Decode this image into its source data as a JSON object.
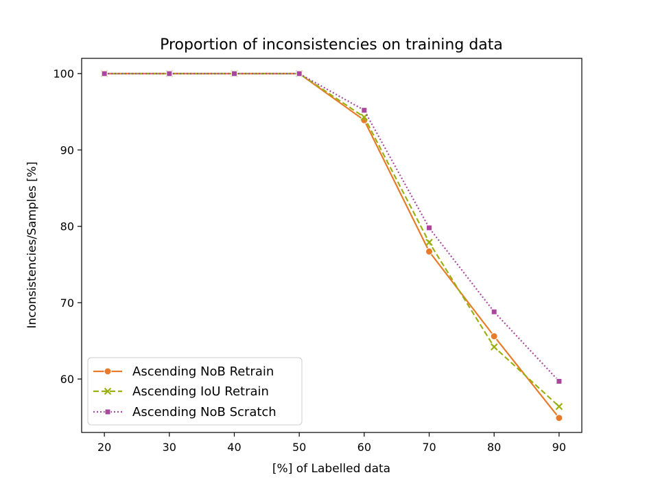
{
  "chart_data": {
    "type": "line",
    "title": "Proportion of inconsistencies on training data",
    "xlabel": "[%] of Labelled data",
    "ylabel": "Inconsistencies/Samples [%]",
    "x": [
      20,
      30,
      40,
      50,
      60,
      70,
      80,
      90
    ],
    "xticks": [
      "20",
      "30",
      "40",
      "50",
      "60",
      "70",
      "80",
      "90"
    ],
    "yticks": [
      "60",
      "70",
      "80",
      "90",
      "100"
    ],
    "xlim": [
      16.5,
      93.5
    ],
    "ylim": [
      53.0,
      102.0
    ],
    "legend_position": "lower-left",
    "series": [
      {
        "name": "Ascending NoB Retrain",
        "color": "#e87a2a",
        "marker": "circle",
        "line_style": "solid",
        "values": [
          100,
          100,
          100,
          100,
          93.9,
          76.7,
          65.6,
          54.9
        ]
      },
      {
        "name": "Ascending IoU Retrain",
        "color": "#9bb010",
        "marker": "x",
        "line_style": "dashed",
        "values": [
          100,
          100,
          100,
          100,
          94.3,
          77.9,
          64.2,
          56.4
        ]
      },
      {
        "name": "Ascending NoB Scratch",
        "color": "#a8479c",
        "marker": "square",
        "line_style": "dotted",
        "values": [
          100,
          100,
          100,
          100,
          95.2,
          79.8,
          68.8,
          59.7
        ]
      }
    ]
  }
}
